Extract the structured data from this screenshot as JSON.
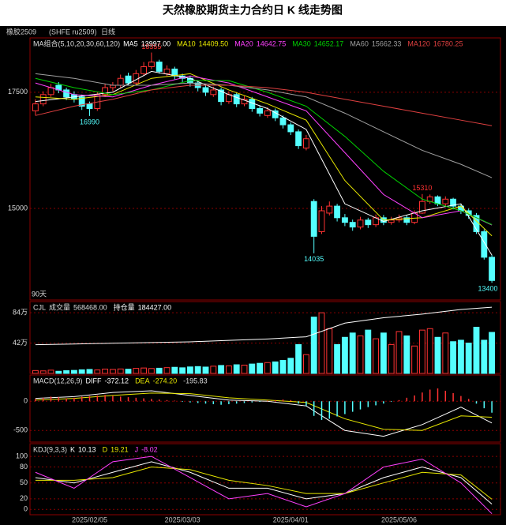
{
  "page_title": "天然橡胶期货主力合约日 K 线走势图",
  "symbol": "橡胶2509",
  "code": "(SHFE ru2509)",
  "period": "日线",
  "chart_data": [
    {
      "type": "candlestick",
      "legend_title": "MA组合(5,10,20,30,60,120)",
      "period_label": "90天",
      "categories": [
        null,
        null,
        null,
        null,
        null,
        null,
        null,
        "2025/02/05",
        null,
        null,
        null,
        null,
        null,
        null,
        null,
        null,
        null,
        null,
        null,
        "2025/03/03",
        null,
        null,
        null,
        null,
        null,
        null,
        null,
        null,
        null,
        null,
        null,
        null,
        null,
        "2025/04/01",
        null,
        null,
        null,
        null,
        null,
        null,
        null,
        null,
        null,
        null,
        null,
        null,
        null,
        "2025/05/06",
        null,
        null,
        null,
        null,
        null,
        null,
        null,
        null,
        null,
        null,
        null,
        null
      ],
      "open": [
        17100,
        17250,
        17450,
        17650,
        17550,
        17450,
        17400,
        17250,
        17150,
        17450,
        17600,
        17650,
        17850,
        17700,
        17900,
        18050,
        18150,
        17900,
        18000,
        17850,
        17800,
        17700,
        17600,
        17450,
        17550,
        17300,
        17450,
        17250,
        17350,
        17150,
        17000,
        17100,
        16950,
        16800,
        16650,
        16300,
        15150,
        14500,
        14900,
        15050,
        14800,
        14700,
        14600,
        14750,
        14650,
        14800,
        14700,
        14750,
        14800,
        14700,
        14900,
        15150,
        15250,
        15100,
        15200,
        15050,
        14950,
        14850,
        14500,
        13950
      ],
      "high": [
        17350,
        17520,
        17680,
        17720,
        17600,
        17520,
        17450,
        17300,
        17500,
        17680,
        17720,
        17880,
        17920,
        17980,
        18150,
        18355,
        18200,
        18080,
        18050,
        17900,
        17850,
        17760,
        17650,
        17620,
        17600,
        17520,
        17500,
        17420,
        17400,
        17220,
        17180,
        17150,
        17000,
        16850,
        16700,
        16580,
        15200,
        15050,
        15150,
        15100,
        14880,
        14760,
        14820,
        14800,
        14870,
        14860,
        14820,
        14870,
        14850,
        14960,
        15310,
        15300,
        15280,
        15260,
        15230,
        15100,
        15000,
        14900,
        14550,
        14000
      ],
      "low": [
        17000,
        17200,
        17400,
        17480,
        17330,
        17280,
        17120,
        16990,
        17100,
        17400,
        17520,
        17600,
        17650,
        17650,
        17850,
        18000,
        17900,
        17850,
        17780,
        17720,
        17620,
        17520,
        17420,
        17400,
        17220,
        17250,
        17180,
        17200,
        17080,
        16980,
        16950,
        16880,
        16720,
        16580,
        16280,
        16250,
        14035,
        14450,
        14850,
        14720,
        14620,
        14520,
        14550,
        14580,
        14600,
        14640,
        14650,
        14700,
        14640,
        14660,
        14880,
        15100,
        15050,
        15050,
        14980,
        14880,
        14780,
        14450,
        13900,
        13400
      ],
      "close": [
        17250,
        17450,
        17600,
        17550,
        17400,
        17350,
        17200,
        17150,
        17450,
        17600,
        17650,
        17800,
        17700,
        17900,
        18050,
        18150,
        17950,
        18000,
        17850,
        17800,
        17700,
        17600,
        17500,
        17550,
        17300,
        17450,
        17250,
        17350,
        17150,
        17050,
        17100,
        16950,
        16800,
        16650,
        16350,
        16500,
        14400,
        14950,
        15050,
        14800,
        14700,
        14600,
        14750,
        14650,
        14800,
        14700,
        14750,
        14800,
        14700,
        14900,
        15150,
        15250,
        15100,
        15200,
        15050,
        14950,
        14850,
        14500,
        13950,
        13450
      ],
      "up_color": "#ff3232",
      "down_color": "#54ffff",
      "marked_highs": [
        18355,
        15310
      ],
      "marked_lows": [
        16990,
        14035,
        13400
      ],
      "ylim": [
        13030,
        18670
      ],
      "yticks": [
        15000,
        17500
      ],
      "grid": true,
      "series": [
        {
          "name": "MA5",
          "value_label": "13997.00",
          "color": "#ffffff",
          "x": [
            0,
            5,
            10,
            15,
            20,
            25,
            30,
            35,
            40,
            45,
            50,
            55,
            59
          ],
          "values": [
            17300,
            17400,
            17500,
            17950,
            17800,
            17450,
            17150,
            16700,
            15100,
            14720,
            14950,
            15100,
            13997
          ]
        },
        {
          "name": "MA10",
          "value_label": "14409.50",
          "color": "#e8e800",
          "x": [
            0,
            5,
            10,
            15,
            20,
            25,
            30,
            35,
            40,
            45,
            50,
            55,
            59
          ],
          "values": [
            17400,
            17350,
            17450,
            17800,
            17900,
            17550,
            17250,
            16900,
            15600,
            14750,
            14800,
            15050,
            14409.5
          ]
        },
        {
          "name": "MA20",
          "value_label": "14642.75",
          "color": "#ff40ff",
          "x": [
            0,
            5,
            10,
            15,
            20,
            25,
            30,
            35,
            40,
            45,
            50,
            55,
            59
          ],
          "values": [
            17700,
            17450,
            17400,
            17650,
            17850,
            17700,
            17400,
            17100,
            16200,
            15300,
            14800,
            14950,
            14642.75
          ]
        },
        {
          "name": "MA30",
          "value_label": "14652.17",
          "color": "#00d000",
          "x": [
            0,
            5,
            10,
            15,
            20,
            25,
            30,
            35,
            40,
            45,
            50,
            55,
            59
          ],
          "values": [
            17800,
            17600,
            17450,
            17550,
            17750,
            17750,
            17500,
            17200,
            16550,
            15800,
            15200,
            14950,
            14652.17
          ]
        },
        {
          "name": "MA60",
          "value_label": "15662.33",
          "color": "#a0a0a0",
          "x": [
            0,
            5,
            10,
            15,
            20,
            25,
            30,
            35,
            40,
            45,
            50,
            55,
            59
          ],
          "values": [
            17900,
            17800,
            17650,
            17650,
            17700,
            17650,
            17550,
            17400,
            17050,
            16650,
            16250,
            15950,
            15662.33
          ]
        },
        {
          "name": "MA120",
          "value_label": "16780.25",
          "color": "#e04040",
          "x": [
            0,
            5,
            10,
            15,
            20,
            25,
            30,
            35,
            40,
            45,
            50,
            55,
            59
          ],
          "values": [
            17000,
            17200,
            17350,
            17550,
            17650,
            17650,
            17600,
            17500,
            17350,
            17200,
            17050,
            16900,
            16780.25
          ]
        }
      ]
    },
    {
      "type": "bar",
      "legend_title": "CJL",
      "ylim": [
        0,
        995000
      ],
      "y2lim": [
        0,
        200000
      ],
      "grid": true,
      "yticks": [
        {
          "value": 420000,
          "label": "42万"
        },
        {
          "value": 840000,
          "label": "84万"
        }
      ],
      "series": [
        {
          "name": "成交量",
          "value_label": "568468.00",
          "style": "volume",
          "values": [
            40000,
            35000,
            45000,
            30000,
            38000,
            42000,
            50000,
            55000,
            48000,
            60000,
            55000,
            62000,
            58000,
            70000,
            75000,
            68000,
            72000,
            80000,
            85000,
            78000,
            90000,
            95000,
            88000,
            100000,
            110000,
            105000,
            120000,
            115000,
            130000,
            140000,
            150000,
            160000,
            180000,
            210000,
            400000,
            260000,
            780000,
            840000,
            620000,
            400000,
            500000,
            560000,
            520000,
            600000,
            480000,
            560000,
            400000,
            580000,
            520000,
            380000,
            600000,
            620000,
            500000,
            560000,
            440000,
            460000,
            420000,
            640000,
            460000,
            568468
          ]
        },
        {
          "name": "持仓量",
          "value_label": "184427.00",
          "style": "line",
          "axis": "y2",
          "color": "#ffffff",
          "x": [
            0,
            5,
            10,
            15,
            20,
            25,
            30,
            35,
            40,
            45,
            50,
            55,
            59
          ],
          "values": [
            80000,
            82000,
            84000,
            86000,
            88000,
            92000,
            96000,
            102000,
            140000,
            155000,
            165000,
            178000,
            184427
          ]
        }
      ]
    },
    {
      "type": "bar",
      "legend_title": "MACD(12,26,9)",
      "ylim": [
        -700,
        450
      ],
      "yticks": [
        -500,
        0
      ],
      "grid": true,
      "series": [
        {
          "name": "DIFF",
          "value_label": "-372.12",
          "style": "line",
          "color": "#ffffff",
          "x": [
            0,
            5,
            10,
            15,
            20,
            25,
            30,
            35,
            40,
            45,
            50,
            55,
            59
          ],
          "values": [
            50,
            80,
            150,
            180,
            100,
            20,
            0,
            -80,
            -500,
            -600,
            -400,
            -100,
            -372.12
          ]
        },
        {
          "name": "DEA",
          "value_label": "-274.20",
          "style": "line",
          "color": "#e8e800",
          "x": [
            0,
            5,
            10,
            15,
            20,
            25,
            30,
            35,
            40,
            45,
            50,
            55,
            59
          ],
          "values": [
            20,
            50,
            100,
            140,
            130,
            60,
            20,
            -20,
            -300,
            -480,
            -500,
            -250,
            -274.2
          ]
        },
        {
          "value_label": "-195.83",
          "style": "histogram",
          "color": "#ff3232",
          "negative_color": "#54ffff",
          "values": [
            40,
            60,
            80,
            70,
            50,
            60,
            80,
            90,
            100,
            110,
            90,
            80,
            70,
            60,
            50,
            40,
            30,
            20,
            10,
            -10,
            -20,
            -30,
            -40,
            -50,
            -60,
            -50,
            -40,
            -30,
            -20,
            -10,
            10,
            20,
            30,
            20,
            -40,
            -80,
            -250,
            -320,
            -300,
            -260,
            -220,
            -180,
            -140,
            -100,
            -70,
            -40,
            -10,
            20,
            60,
            100,
            150,
            200,
            220,
            180,
            140,
            90,
            40,
            -40,
            -120,
            -195.83
          ]
        }
      ]
    },
    {
      "type": "line",
      "legend_title": "KDJ(9,3,3)",
      "ylim": [
        -10,
        124
      ],
      "yticks": [
        0,
        20,
        50,
        80,
        100
      ],
      "grid": true,
      "series": [
        {
          "name": "K",
          "value_label": "10.13",
          "style": "line",
          "color": "#ffffff",
          "x": [
            0,
            5,
            10,
            15,
            20,
            25,
            30,
            35,
            40,
            45,
            50,
            55,
            59
          ],
          "values": [
            60,
            50,
            70,
            90,
            70,
            40,
            40,
            20,
            30,
            60,
            80,
            60,
            10.13
          ]
        },
        {
          "name": "D",
          "value_label": "19.21",
          "style": "line",
          "color": "#e8e800",
          "x": [
            0,
            5,
            10,
            15,
            20,
            25,
            30,
            35,
            40,
            45,
            50,
            55,
            59
          ],
          "values": [
            55,
            55,
            60,
            80,
            75,
            55,
            45,
            30,
            30,
            50,
            70,
            65,
            19.21
          ]
        },
        {
          "name": "J",
          "value_label": "-8.02",
          "style": "line",
          "color": "#ff40ff",
          "x": [
            0,
            5,
            10,
            15,
            20,
            25,
            30,
            35,
            40,
            45,
            50,
            55,
            59
          ],
          "values": [
            70,
            40,
            90,
            100,
            60,
            20,
            30,
            5,
            30,
            80,
            95,
            50,
            -8.02
          ]
        }
      ]
    }
  ]
}
